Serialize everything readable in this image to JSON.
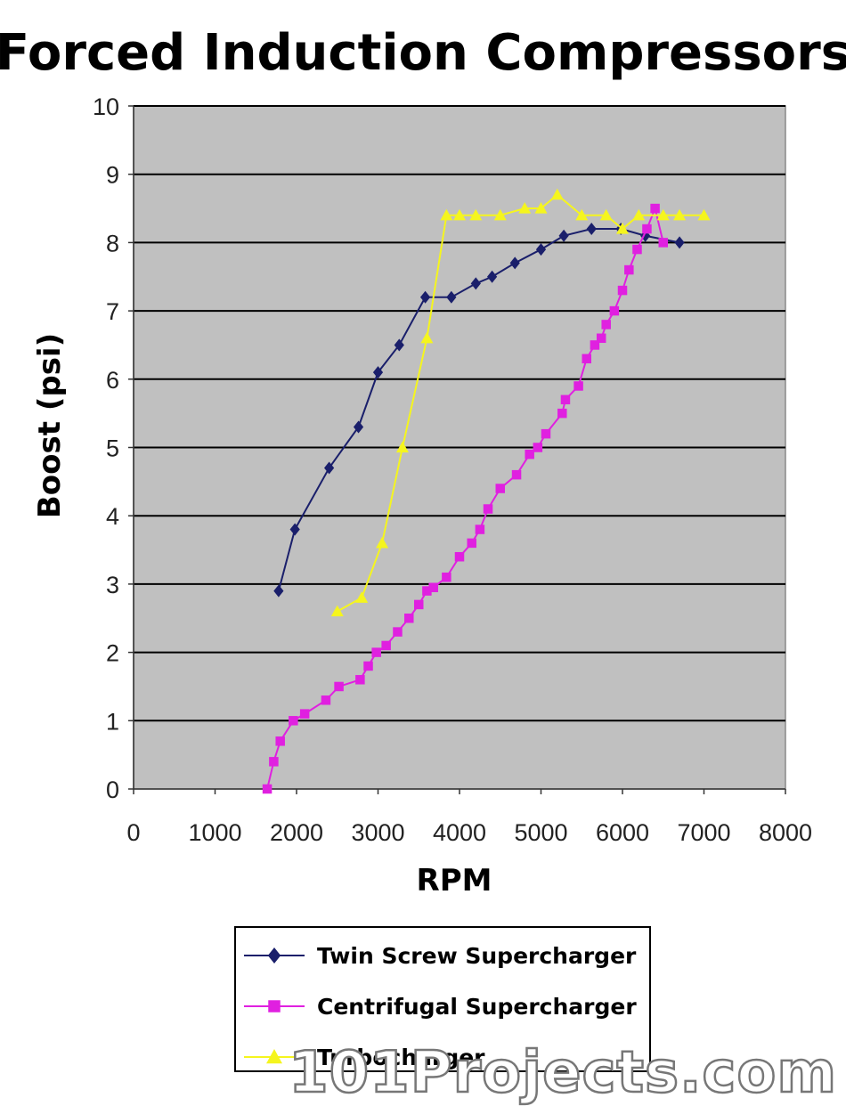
{
  "watermark": "101Projects.com",
  "chart_data": {
    "type": "line",
    "title": "Forced Induction Compressors",
    "xlabel": "RPM",
    "ylabel": "Boost (psi)",
    "xlim": [
      0,
      8000
    ],
    "ylim": [
      0,
      10
    ],
    "x_ticks": [
      0,
      1000,
      2000,
      3000,
      4000,
      5000,
      6000,
      7000,
      8000
    ],
    "y_ticks": [
      0,
      1,
      2,
      3,
      4,
      5,
      6,
      7,
      8,
      9,
      10
    ],
    "grid": "horizontal",
    "plot_background": "#c0c0c0",
    "legend_position": "bottom",
    "series": [
      {
        "name": "Twin Screw Supercharger",
        "color": "#1a1f6b",
        "marker": "diamond",
        "points": [
          [
            1780,
            2.9
          ],
          [
            1980,
            3.8
          ],
          [
            2400,
            4.7
          ],
          [
            2760,
            5.3
          ],
          [
            3000,
            6.1
          ],
          [
            3260,
            6.5
          ],
          [
            3580,
            7.2
          ],
          [
            3900,
            7.2
          ],
          [
            4200,
            7.4
          ],
          [
            4400,
            7.5
          ],
          [
            4680,
            7.7
          ],
          [
            5000,
            7.9
          ],
          [
            5280,
            8.1
          ],
          [
            5620,
            8.2
          ],
          [
            5980,
            8.2
          ],
          [
            6280,
            8.1
          ],
          [
            6700,
            8.0
          ]
        ]
      },
      {
        "name": "Centrifugal Supercharger",
        "color": "#e020e0",
        "marker": "square",
        "points": [
          [
            1640,
            0.0
          ],
          [
            1720,
            0.4
          ],
          [
            1800,
            0.7
          ],
          [
            1960,
            1.0
          ],
          [
            2100,
            1.1
          ],
          [
            2360,
            1.3
          ],
          [
            2520,
            1.5
          ],
          [
            2780,
            1.6
          ],
          [
            2880,
            1.8
          ],
          [
            2980,
            2.0
          ],
          [
            3100,
            2.1
          ],
          [
            3240,
            2.3
          ],
          [
            3380,
            2.5
          ],
          [
            3500,
            2.7
          ],
          [
            3600,
            2.9
          ],
          [
            3680,
            2.95
          ],
          [
            3840,
            3.1
          ],
          [
            4000,
            3.4
          ],
          [
            4150,
            3.6
          ],
          [
            4250,
            3.8
          ],
          [
            4350,
            4.1
          ],
          [
            4500,
            4.4
          ],
          [
            4700,
            4.6
          ],
          [
            4860,
            4.9
          ],
          [
            4960,
            5.0
          ],
          [
            5060,
            5.2
          ],
          [
            5260,
            5.5
          ],
          [
            5300,
            5.7
          ],
          [
            5460,
            5.9
          ],
          [
            5560,
            6.3
          ],
          [
            5660,
            6.5
          ],
          [
            5740,
            6.6
          ],
          [
            5800,
            6.8
          ],
          [
            5900,
            7.0
          ],
          [
            6000,
            7.3
          ],
          [
            6080,
            7.6
          ],
          [
            6180,
            7.9
          ],
          [
            6300,
            8.2
          ],
          [
            6400,
            8.5
          ],
          [
            6500,
            8.0
          ]
        ]
      },
      {
        "name": "Turbocharger",
        "color": "#f5f51e",
        "marker": "triangle",
        "points": [
          [
            2500,
            2.6
          ],
          [
            2800,
            2.8
          ],
          [
            3050,
            3.6
          ],
          [
            3300,
            5.0
          ],
          [
            3600,
            6.6
          ],
          [
            3840,
            8.4
          ],
          [
            4000,
            8.4
          ],
          [
            4200,
            8.4
          ],
          [
            4500,
            8.4
          ],
          [
            4800,
            8.5
          ],
          [
            5000,
            8.5
          ],
          [
            5200,
            8.7
          ],
          [
            5500,
            8.4
          ],
          [
            5800,
            8.4
          ],
          [
            6000,
            8.2
          ],
          [
            6200,
            8.4
          ],
          [
            6500,
            8.4
          ],
          [
            6700,
            8.4
          ],
          [
            7000,
            8.4
          ]
        ]
      }
    ]
  }
}
